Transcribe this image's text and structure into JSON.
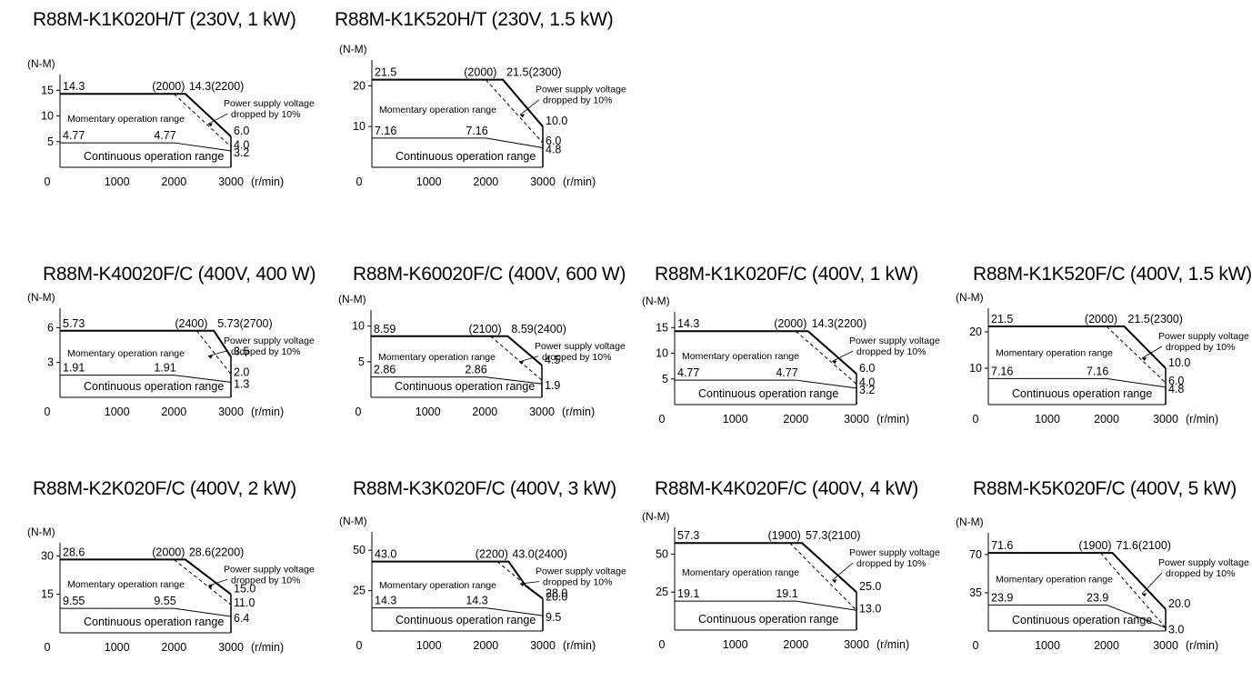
{
  "common": {
    "y_unit": "(N-M)",
    "x_unit": "(r/min)",
    "momentary_label": "Momentary operation range",
    "continuous_label": "Continuous operation range",
    "voltage_note_line1": "Power supply voltage",
    "voltage_note_line2": "dropped by 10%"
  },
  "chart_data": [
    {
      "type": "line",
      "title": "R88M-K1K020H/T (230V, 1 kW)",
      "xlabel": "(r/min)",
      "ylabel": "(N-M)",
      "xlim": [
        0,
        3000
      ],
      "x_ticks": [
        "0",
        "1000",
        "2000",
        "3000"
      ],
      "y_ticks": [
        5,
        10,
        15
      ],
      "series": [
        {
          "x": [
            0,
            2200,
            3000
          ],
          "y": [
            14.3,
            14.3,
            6.0
          ]
        },
        {
          "x": [
            2000,
            3000
          ],
          "y": [
            14.3,
            4.0
          ]
        },
        {
          "x": [
            0,
            2000,
            3000
          ],
          "y": [
            4.77,
            4.77,
            3.2
          ]
        }
      ],
      "labels": {
        "peak": "14.3",
        "knee": "(2000)",
        "peak_end": "14.3(2200)",
        "end_peak": "6.0",
        "end_reduced": "4.0",
        "cont": "4.77",
        "cont_knee": "4.77",
        "end_cont": "3.2"
      }
    },
    {
      "type": "line",
      "title": "R88M-K1K520H/T (230V, 1.5 kW)",
      "xlabel": "(r/min)",
      "ylabel": "(N-M)",
      "xlim": [
        0,
        3000
      ],
      "x_ticks": [
        "0",
        "1000",
        "2000",
        "3000"
      ],
      "y_ticks": [
        10,
        20
      ],
      "series": [
        {
          "x": [
            0,
            2300,
            3000
          ],
          "y": [
            21.5,
            21.5,
            10.0
          ]
        },
        {
          "x": [
            2000,
            3000
          ],
          "y": [
            21.5,
            6.0
          ]
        },
        {
          "x": [
            0,
            2000,
            3000
          ],
          "y": [
            7.16,
            7.16,
            4.8
          ]
        }
      ],
      "labels": {
        "peak": "21.5",
        "knee": "(2000)",
        "peak_end": "21.5(2300)",
        "end_peak": "10.0",
        "end_reduced": "6.0",
        "cont": "7.16",
        "cont_knee": "7.16",
        "end_cont": "4.8"
      }
    },
    {
      "type": "line",
      "title": "R88M-K40020F/C (400V, 400 W)",
      "xlabel": "(r/min)",
      "ylabel": "(N-M)",
      "xlim": [
        0,
        3000
      ],
      "x_ticks": [
        "0",
        "1000",
        "2000",
        "3000"
      ],
      "y_ticks": [
        3,
        6
      ],
      "series": [
        {
          "x": [
            0,
            2700,
            3000
          ],
          "y": [
            5.73,
            5.73,
            3.5
          ]
        },
        {
          "x": [
            2400,
            3000
          ],
          "y": [
            5.73,
            2.0
          ]
        },
        {
          "x": [
            0,
            2000,
            3000
          ],
          "y": [
            1.91,
            1.91,
            1.3
          ]
        }
      ],
      "labels": {
        "peak": "5.73",
        "knee": "(2400)",
        "peak_end": "5.73(2700)",
        "end_peak": "3.5",
        "end_reduced": "2.0",
        "cont": "1.91",
        "cont_knee": "1.91",
        "end_cont": "1.3"
      }
    },
    {
      "type": "line",
      "title": "R88M-K60020F/C (400V, 600 W)",
      "xlabel": "(r/min)",
      "ylabel": "(N-M)",
      "xlim": [
        0,
        3000
      ],
      "x_ticks": [
        "0",
        "1000",
        "2000",
        "3000"
      ],
      "y_ticks": [
        5,
        10
      ],
      "series": [
        {
          "x": [
            0,
            2400,
            3000
          ],
          "y": [
            8.59,
            8.59,
            4.5
          ]
        },
        {
          "x": [
            2100,
            3000
          ],
          "y": [
            8.59,
            2.4
          ]
        },
        {
          "x": [
            0,
            2000,
            3000
          ],
          "y": [
            2.86,
            2.86,
            1.9
          ]
        }
      ],
      "labels": {
        "peak": "8.59",
        "knee": "(2100)",
        "peak_end": "8.59(2400)",
        "end_peak": "4.5",
        "end_reduced": "",
        "cont": "2.86",
        "cont_knee": "2.86",
        "end_cont": "1.9"
      }
    },
    {
      "type": "line",
      "title": "R88M-K1K020F/C (400V, 1 kW)",
      "xlabel": "(r/min)",
      "ylabel": "(N-M)",
      "xlim": [
        0,
        3000
      ],
      "x_ticks": [
        "0",
        "1000",
        "2000",
        "3000"
      ],
      "y_ticks": [
        5,
        10,
        15
      ],
      "series": [
        {
          "x": [
            0,
            2200,
            3000
          ],
          "y": [
            14.3,
            14.3,
            6.0
          ]
        },
        {
          "x": [
            2000,
            3000
          ],
          "y": [
            14.3,
            4.0
          ]
        },
        {
          "x": [
            0,
            2000,
            3000
          ],
          "y": [
            4.77,
            4.77,
            3.2
          ]
        }
      ],
      "labels": {
        "peak": "14.3",
        "knee": "(2000)",
        "peak_end": "14.3(2200)",
        "end_peak": "6.0",
        "end_reduced": "4.0",
        "cont": "4.77",
        "cont_knee": "4.77",
        "end_cont": "3.2"
      }
    },
    {
      "type": "line",
      "title": "R88M-K1K520F/C (400V, 1.5 kW)",
      "xlabel": "(r/min)",
      "ylabel": "(N-M)",
      "xlim": [
        0,
        3000
      ],
      "x_ticks": [
        "0",
        "1000",
        "2000",
        "3000"
      ],
      "y_ticks": [
        10,
        20
      ],
      "series": [
        {
          "x": [
            0,
            2300,
            3000
          ],
          "y": [
            21.5,
            21.5,
            10.0
          ]
        },
        {
          "x": [
            2000,
            3000
          ],
          "y": [
            21.5,
            6.0
          ]
        },
        {
          "x": [
            0,
            2000,
            3000
          ],
          "y": [
            7.16,
            7.16,
            4.8
          ]
        }
      ],
      "labels": {
        "peak": "21.5",
        "knee": "(2000)",
        "peak_end": "21.5(2300)",
        "end_peak": "10.0",
        "end_reduced": "6.0",
        "cont": "7.16",
        "cont_knee": "7.16",
        "end_cont": "4.8"
      }
    },
    {
      "type": "line",
      "title": "R88M-K2K020F/C (400V, 2 kW)",
      "xlabel": "(r/min)",
      "ylabel": "(N-M)",
      "xlim": [
        0,
        3000
      ],
      "x_ticks": [
        "0",
        "1000",
        "2000",
        "3000"
      ],
      "y_ticks": [
        15,
        30
      ],
      "series": [
        {
          "x": [
            0,
            2200,
            3000
          ],
          "y": [
            28.6,
            28.6,
            15.0
          ]
        },
        {
          "x": [
            2000,
            3000
          ],
          "y": [
            28.6,
            11.0
          ]
        },
        {
          "x": [
            0,
            2000,
            3000
          ],
          "y": [
            9.55,
            9.55,
            6.4
          ]
        }
      ],
      "labels": {
        "peak": "28.6",
        "knee": "(2000)",
        "peak_end": "28.6(2200)",
        "end_peak": "15.0",
        "end_reduced": "11.0",
        "cont": "9.55",
        "cont_knee": "9.55",
        "end_cont": "6.4"
      }
    },
    {
      "type": "line",
      "title": "R88M-K3K020F/C (400V, 3 kW)",
      "xlabel": "(r/min)",
      "ylabel": "(N-M)",
      "xlim": [
        0,
        3000
      ],
      "x_ticks": [
        "0",
        "1000",
        "2000",
        "3000"
      ],
      "y_ticks": [
        25,
        50
      ],
      "series": [
        {
          "x": [
            0,
            2400,
            2700,
            3000
          ],
          "y": [
            43.0,
            43.0,
            28.0,
            20.0
          ]
        },
        {
          "x": [
            2200,
            3000
          ],
          "y": [
            43.0,
            20.0
          ]
        },
        {
          "x": [
            0,
            2000,
            3000
          ],
          "y": [
            14.3,
            14.3,
            9.5
          ]
        }
      ],
      "labels": {
        "peak": "43.0",
        "knee": "(2200)",
        "peak_end": "43.0(2400)",
        "end_peak": "28.0",
        "end_reduced": "20.0",
        "cont": "14.3",
        "cont_knee": "14.3",
        "end_cont": "9.5"
      }
    },
    {
      "type": "line",
      "title": "R88M-K4K020F/C (400V, 4 kW)",
      "xlabel": "(r/min)",
      "ylabel": "(N-M)",
      "xlim": [
        0,
        3000
      ],
      "x_ticks": [
        "0",
        "1000",
        "2000",
        "3000"
      ],
      "y_ticks": [
        25,
        50
      ],
      "series": [
        {
          "x": [
            0,
            2100,
            3000
          ],
          "y": [
            57.3,
            57.3,
            25.0
          ]
        },
        {
          "x": [
            1900,
            3000
          ],
          "y": [
            57.3,
            13.0
          ]
        },
        {
          "x": [
            0,
            2000,
            3000
          ],
          "y": [
            19.1,
            19.1,
            13.0
          ]
        }
      ],
      "labels": {
        "peak": "57.3",
        "knee": "(1900)",
        "peak_end": "57.3(2100)",
        "end_peak": "25.0",
        "end_reduced": "13.0",
        "cont": "19.1",
        "cont_knee": "19.1",
        "end_cont": ""
      }
    },
    {
      "type": "line",
      "title": "R88M-K5K020F/C (400V, 5 kW)",
      "xlabel": "(r/min)",
      "ylabel": "(N-M)",
      "xlim": [
        0,
        3000
      ],
      "x_ticks": [
        "0",
        "1000",
        "2000",
        "3000"
      ],
      "y_ticks": [
        35,
        70
      ],
      "series": [
        {
          "x": [
            0,
            2100,
            3000
          ],
          "y": [
            71.6,
            71.6,
            20.0
          ]
        },
        {
          "x": [
            1900,
            3000
          ],
          "y": [
            71.6,
            3.0
          ]
        },
        {
          "x": [
            0,
            2000,
            3000
          ],
          "y": [
            23.9,
            23.9,
            3.0
          ]
        }
      ],
      "labels": {
        "peak": "71.6",
        "knee": "(1900)",
        "peak_end": "71.6(2100)",
        "end_peak": "20.0",
        "end_reduced": "",
        "cont": "23.9",
        "cont_knee": "23.9",
        "end_cont": "3.0"
      }
    }
  ]
}
